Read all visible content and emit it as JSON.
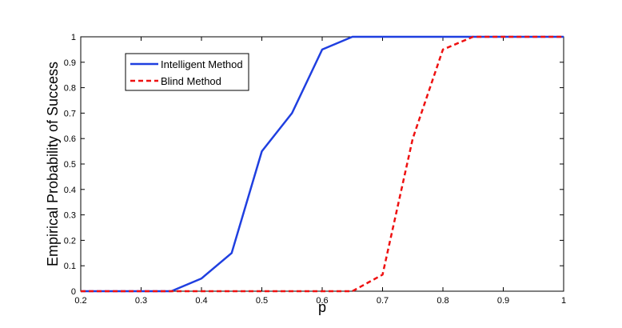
{
  "chart_data": {
    "type": "line",
    "xlabel": "p",
    "ylabel": "Empirical Probability of Success",
    "xlim": [
      0.2,
      1
    ],
    "ylim": [
      0,
      1
    ],
    "x_ticks": [
      "0.2",
      "0.3",
      "0.4",
      "0.5",
      "0.6",
      "0.7",
      "0.8",
      "0.9",
      "1"
    ],
    "y_ticks": [
      "0",
      "0.1",
      "0.2",
      "0.3",
      "0.4",
      "0.5",
      "0.6",
      "0.7",
      "0.8",
      "0.9",
      "1"
    ],
    "grid": false,
    "legend_position": "top-left",
    "series": [
      {
        "name": "Intelligent Method",
        "color": "#1f3fe0",
        "line_style": "solid",
        "x": [
          0.2,
          0.25,
          0.3,
          0.35,
          0.4,
          0.45,
          0.5,
          0.55,
          0.6,
          0.65,
          0.7,
          0.75,
          0.8,
          0.85,
          0.9,
          0.95,
          1.0
        ],
        "y": [
          0,
          0,
          0,
          0,
          0.05,
          0.15,
          0.55,
          0.7,
          0.95,
          1,
          1,
          1,
          1,
          1,
          1,
          1,
          1
        ]
      },
      {
        "name": "Blind Method",
        "color": "#ee1111",
        "line_style": "dashed",
        "x": [
          0.2,
          0.25,
          0.3,
          0.35,
          0.4,
          0.45,
          0.5,
          0.55,
          0.6,
          0.65,
          0.7,
          0.75,
          0.8,
          0.85,
          0.9,
          0.95,
          1.0
        ],
        "y": [
          0,
          0,
          0,
          0,
          0,
          0,
          0,
          0,
          0,
          0,
          0.065,
          0.6,
          0.95,
          1,
          1,
          1,
          1
        ]
      }
    ]
  }
}
